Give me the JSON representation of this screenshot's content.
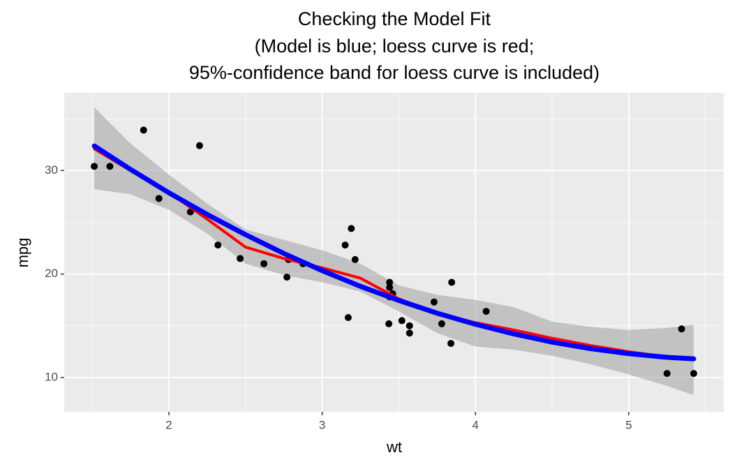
{
  "chart_data": {
    "type": "scatter",
    "title": [
      "Checking the Model Fit",
      "(Model is blue; loess curve is red;",
      "95%-confidence band for loess curve is included)"
    ],
    "x_label": "wt",
    "y_label": "mpg",
    "xlim": [
      1.317,
      5.62
    ],
    "ylim": [
      6.7,
      37.5
    ],
    "xticks": [
      2,
      3,
      4,
      5
    ],
    "yticks": [
      10,
      20,
      30
    ],
    "x_minor_ticks": [
      1.5,
      2.5,
      3.5,
      4.5,
      5.5
    ],
    "y_minor_ticks": [
      15,
      25,
      35
    ],
    "grid": true,
    "points": {
      "color": "#000000",
      "x": [
        2.62,
        2.875,
        2.32,
        3.215,
        3.44,
        3.46,
        3.57,
        3.19,
        3.15,
        3.44,
        3.44,
        4.07,
        3.73,
        3.78,
        5.25,
        5.424,
        5.345,
        2.2,
        1.615,
        1.835,
        2.465,
        3.52,
        3.435,
        3.84,
        3.845,
        1.935,
        2.14,
        1.513,
        3.17,
        2.77,
        3.57,
        2.78
      ],
      "values": [
        21.0,
        21.0,
        22.8,
        21.4,
        18.7,
        18.1,
        14.3,
        24.4,
        22.8,
        19.2,
        17.8,
        16.4,
        17.3,
        15.2,
        10.4,
        10.4,
        14.7,
        32.4,
        30.4,
        33.9,
        21.5,
        15.5,
        15.2,
        13.3,
        19.2,
        27.3,
        26.0,
        30.4,
        15.8,
        19.7,
        15.0,
        21.4
      ]
    },
    "band": {
      "color": "#999999",
      "x": [
        1.513,
        1.75,
        2,
        2.25,
        2.5,
        2.75,
        3,
        3.25,
        3.5,
        3.75,
        4,
        4.25,
        4.5,
        4.75,
        5,
        5.25,
        5.424
      ],
      "lower": [
        28.2,
        27.7,
        26.2,
        23.9,
        21.0,
        19.9,
        19.2,
        18.3,
        16.4,
        14.3,
        13.0,
        12.7,
        12.1,
        11.3,
        10.3,
        9.2,
        8.3
      ],
      "upper": [
        36.1,
        32.6,
        29.6,
        26.8,
        24.3,
        23.3,
        22.3,
        21.0,
        18.9,
        18.0,
        17.5,
        16.8,
        15.4,
        14.9,
        14.6,
        14.8,
        15.1
      ]
    },
    "lines": [
      {
        "color": "#ff0000",
        "width": 4,
        "x": [
          1.513,
          1.75,
          2,
          2.25,
          2.5,
          2.75,
          3,
          3.25,
          3.5,
          3.75,
          4,
          4.25,
          4.5,
          4.75,
          5,
          5.25,
          5.424
        ],
        "values": [
          32.1,
          30.0,
          27.9,
          25.3,
          22.6,
          21.5,
          20.6,
          19.6,
          17.6,
          16.2,
          15.3,
          14.6,
          13.8,
          13.1,
          12.5,
          12.0,
          11.8
        ]
      },
      {
        "color": "#0000ff",
        "width": 7,
        "x": [
          1.513,
          1.75,
          2,
          2.25,
          2.5,
          2.75,
          3,
          3.25,
          3.5,
          3.75,
          4,
          4.25,
          4.5,
          4.75,
          5,
          5.25,
          5.424
        ],
        "values": [
          32.37,
          30.1,
          27.85,
          25.75,
          23.8,
          21.99,
          20.33,
          18.81,
          17.45,
          16.22,
          15.15,
          14.22,
          13.43,
          12.8,
          12.31,
          11.96,
          11.81
        ]
      }
    ]
  }
}
